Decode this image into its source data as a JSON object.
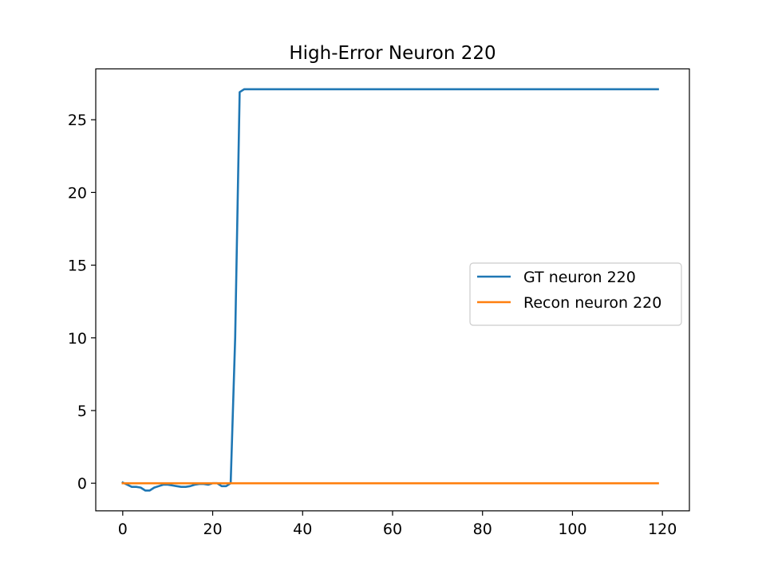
{
  "chart_data": {
    "type": "line",
    "title": "High-Error Neuron 220",
    "xlabel": "",
    "ylabel": "",
    "xlim": [
      -6,
      126
    ],
    "ylim": [
      -1.9,
      28.5
    ],
    "xticks": [
      0,
      20,
      40,
      60,
      80,
      100,
      120
    ],
    "yticks": [
      0,
      5,
      10,
      15,
      20,
      25
    ],
    "grid": false,
    "legend_position": "center-right",
    "series": [
      {
        "name": "GT neuron 220",
        "color": "#1f77b4",
        "x": [
          0,
          1,
          2,
          3,
          4,
          5,
          6,
          7,
          8,
          9,
          10,
          11,
          12,
          13,
          14,
          15,
          16,
          17,
          18,
          19,
          20,
          21,
          22,
          23,
          24,
          25,
          26,
          27,
          28,
          119
        ],
        "y": [
          0.05,
          -0.1,
          -0.25,
          -0.25,
          -0.3,
          -0.5,
          -0.5,
          -0.3,
          -0.2,
          -0.1,
          -0.1,
          -0.15,
          -0.2,
          -0.25,
          -0.25,
          -0.2,
          -0.1,
          -0.05,
          -0.05,
          -0.1,
          0.0,
          0.0,
          -0.2,
          -0.2,
          0.0,
          10.0,
          26.9,
          27.1,
          27.1,
          27.1
        ]
      },
      {
        "name": "Recon neuron 220",
        "color": "#ff7f0e",
        "x": [
          0,
          119
        ],
        "y": [
          0.0,
          0.0
        ]
      }
    ]
  }
}
